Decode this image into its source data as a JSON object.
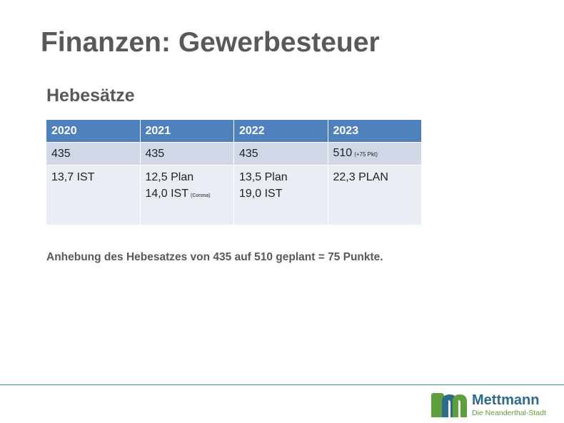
{
  "slide": {
    "title": "Finanzen: Gewerbesteuer",
    "subtitle": "Hebesätze"
  },
  "table": {
    "headers": [
      "2020",
      "2021",
      "2022",
      "2023"
    ],
    "rate_row": {
      "y2020": "435",
      "y2021": "435",
      "y2022": "435",
      "y2023": "510",
      "y2023_note": "(+75 Pkt)"
    },
    "income_row": {
      "y2020": "13,7 IST",
      "y2021_line1": "12,5 Plan",
      "y2021_line2": "14,0 IST",
      "y2021_note": "(Corona)",
      "y2022_line1": "13,5 Plan",
      "y2022_line2": "19,0 IST",
      "y2023": "22,3 PLAN"
    }
  },
  "note": "Anhebung des Hebesatzes von 435 auf 510 geplant = 75 Punkte.",
  "logo": {
    "name": "Mettmann",
    "tagline": "Die Neanderthal-Stadt",
    "icon": "mettmann-m-logo-icon",
    "colors": {
      "green": "#5f9e3c",
      "blue": "#2e6b8a"
    }
  },
  "colors": {
    "header_bg": "#4f81bd",
    "row1_bg": "#d0d8e8",
    "row2_bg": "#e9edf4",
    "title_text": "#595959",
    "footer_line": "#3a8c96"
  }
}
